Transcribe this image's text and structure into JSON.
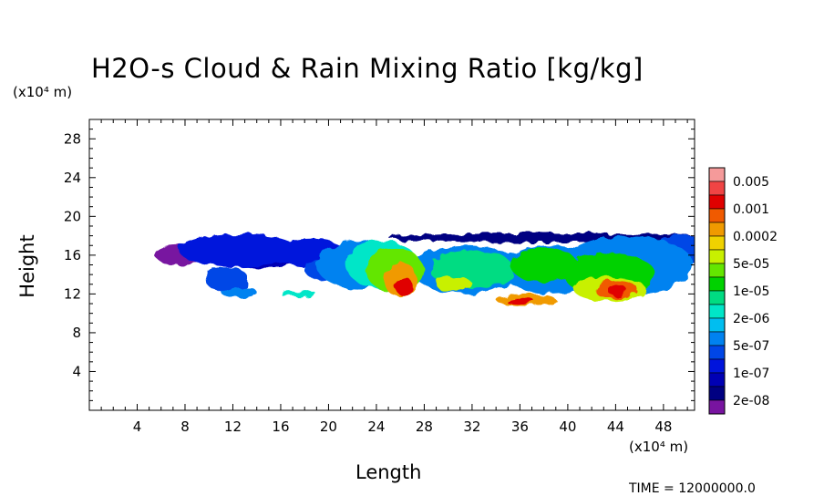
{
  "chart_data": {
    "type": "heatmap",
    "title": "H2O-s Cloud & Rain Mixing Ratio [kg/kg]",
    "xlabel": "Length",
    "ylabel": "Height",
    "x_unit": "(x10⁴ m)",
    "y_unit": "(x10⁴ m)",
    "xlim": [
      0,
      50.6
    ],
    "ylim": [
      0,
      30
    ],
    "x_ticks": [
      4,
      8,
      12,
      16,
      20,
      24,
      28,
      32,
      36,
      40,
      44,
      48
    ],
    "y_ticks": [
      4,
      8,
      12,
      16,
      20,
      24,
      28
    ],
    "footer": "TIME = 12000000.0",
    "colorbar": {
      "levels": [
        {
          "color": "#F59A9A",
          "label": "0.005"
        },
        {
          "color": "#F04444",
          "label": ""
        },
        {
          "color": "#E00000",
          "label": "0.001"
        },
        {
          "color": "#F05A00",
          "label": ""
        },
        {
          "color": "#F09A00",
          "label": "0.0002"
        },
        {
          "color": "#F0D200",
          "label": ""
        },
        {
          "color": "#C8F000",
          "label": "5e-05"
        },
        {
          "color": "#64E600",
          "label": ""
        },
        {
          "color": "#00D200",
          "label": "1e-05"
        },
        {
          "color": "#00DC82",
          "label": ""
        },
        {
          "color": "#00E6C8",
          "label": "2e-06"
        },
        {
          "color": "#00BEF0",
          "label": ""
        },
        {
          "color": "#0082F0",
          "label": "5e-07"
        },
        {
          "color": "#0046E6",
          "label": ""
        },
        {
          "color": "#0014DC",
          "label": "1e-07"
        },
        {
          "color": "#0000B4",
          "label": ""
        },
        {
          "color": "#000082",
          "label": "2e-08"
        },
        {
          "color": "#7814A0",
          "label": ""
        }
      ]
    },
    "field_regions": [
      {
        "level": 17,
        "cx": 7.5,
        "cy": 16.0,
        "rx": 2.0,
        "ry": 1.0
      },
      {
        "level": 14,
        "cx": 12.5,
        "cy": 16.5,
        "rx": 5.0,
        "ry": 1.7
      },
      {
        "level": 15,
        "cx": 15.0,
        "cy": 15.8,
        "rx": 3.0,
        "ry": 1.2
      },
      {
        "level": 13,
        "cx": 11.5,
        "cy": 13.5,
        "rx": 1.8,
        "ry": 1.3
      },
      {
        "level": 12,
        "cx": 12.5,
        "cy": 12.2,
        "rx": 1.5,
        "ry": 0.6
      },
      {
        "level": 14,
        "cx": 18.5,
        "cy": 16.2,
        "rx": 3.0,
        "ry": 1.5
      },
      {
        "level": 13,
        "cx": 20.0,
        "cy": 14.5,
        "rx": 2.0,
        "ry": 1.2
      },
      {
        "level": 10,
        "cx": 17.5,
        "cy": 12.0,
        "rx": 1.5,
        "ry": 0.3
      },
      {
        "level": 12,
        "cx": 22.5,
        "cy": 15.0,
        "rx": 3.5,
        "ry": 2.5
      },
      {
        "level": 10,
        "cx": 24.5,
        "cy": 15.0,
        "rx": 3.0,
        "ry": 2.5
      },
      {
        "level": 7,
        "cx": 25.5,
        "cy": 14.5,
        "rx": 2.4,
        "ry": 2.3
      },
      {
        "level": 4,
        "cx": 26.0,
        "cy": 13.5,
        "rx": 1.4,
        "ry": 1.8
      },
      {
        "level": 2,
        "cx": 26.3,
        "cy": 12.8,
        "rx": 0.7,
        "ry": 1.0
      },
      {
        "level": 12,
        "cx": 31.5,
        "cy": 14.5,
        "rx": 4.5,
        "ry": 2.5
      },
      {
        "level": 9,
        "cx": 32.0,
        "cy": 14.5,
        "rx": 3.5,
        "ry": 2.0
      },
      {
        "level": 6,
        "cx": 30.5,
        "cy": 13.0,
        "rx": 1.5,
        "ry": 0.8
      },
      {
        "level": 12,
        "cx": 38.5,
        "cy": 14.5,
        "rx": 4.0,
        "ry": 2.5
      },
      {
        "level": 8,
        "cx": 38.0,
        "cy": 15.0,
        "rx": 2.8,
        "ry": 1.8
      },
      {
        "level": 4,
        "cx": 36.5,
        "cy": 11.4,
        "rx": 2.5,
        "ry": 0.6
      },
      {
        "level": 2,
        "cx": 36.0,
        "cy": 11.3,
        "rx": 1.2,
        "ry": 0.3
      },
      {
        "level": 12,
        "cx": 45.0,
        "cy": 15.0,
        "rx": 5.5,
        "ry": 3.0
      },
      {
        "level": 8,
        "cx": 43.5,
        "cy": 14.0,
        "rx": 3.8,
        "ry": 2.3
      },
      {
        "level": 6,
        "cx": 43.5,
        "cy": 12.5,
        "rx": 3.0,
        "ry": 1.3
      },
      {
        "level": 3,
        "cx": 44.0,
        "cy": 12.5,
        "rx": 1.8,
        "ry": 1.0
      },
      {
        "level": 2,
        "cx": 44.2,
        "cy": 12.3,
        "rx": 0.8,
        "ry": 0.6
      },
      {
        "level": 13,
        "cx": 49.5,
        "cy": 16.5,
        "rx": 2.5,
        "ry": 1.5
      },
      {
        "level": 16,
        "cx": 38.0,
        "cy": 17.8,
        "rx": 13.0,
        "ry": 0.5
      }
    ]
  }
}
